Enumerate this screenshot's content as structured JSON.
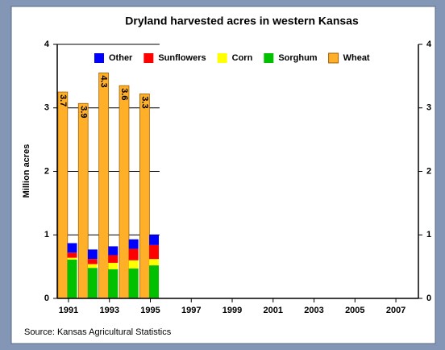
{
  "chart_data": {
    "type": "bar",
    "title": "Dryland harvested acres in western Kansas",
    "ylabel": "Million acres",
    "source": "Source: Kansas Agricultural Statistics",
    "x": [
      1991,
      1992,
      1993,
      1994,
      1995
    ],
    "xlim": [
      1990.45,
      2008.1
    ],
    "xticks": [
      1991,
      1993,
      1995,
      1997,
      1999,
      2001,
      2003,
      2005,
      2007
    ],
    "ylim": [
      0,
      4
    ],
    "yticks": [
      0,
      1,
      2,
      3,
      4
    ],
    "grid": true,
    "legend": "top",
    "series": [
      {
        "name": "Other",
        "color": "#0000ff",
        "stacked": true,
        "values": [
          0.15,
          0.15,
          0.14,
          0.15,
          0.16
        ]
      },
      {
        "name": "Sunflowers",
        "color": "#ff0000",
        "stacked": true,
        "values": [
          0.08,
          0.08,
          0.12,
          0.18,
          0.22
        ]
      },
      {
        "name": "Corn",
        "color": "#ffff00",
        "stacked": true,
        "values": [
          0.03,
          0.06,
          0.1,
          0.13,
          0.1
        ]
      },
      {
        "name": "Sorghum",
        "color": "#00c000",
        "stacked": true,
        "values": [
          0.61,
          0.48,
          0.46,
          0.47,
          0.52
        ]
      },
      {
        "name": "Wheat",
        "color": "#ffb028",
        "stacked": false,
        "values": [
          3.25,
          3.07,
          3.55,
          3.35,
          3.22
        ]
      }
    ],
    "annotations": [
      "3.7",
      "3.9",
      "4.3",
      "3.6",
      "3.3"
    ]
  }
}
